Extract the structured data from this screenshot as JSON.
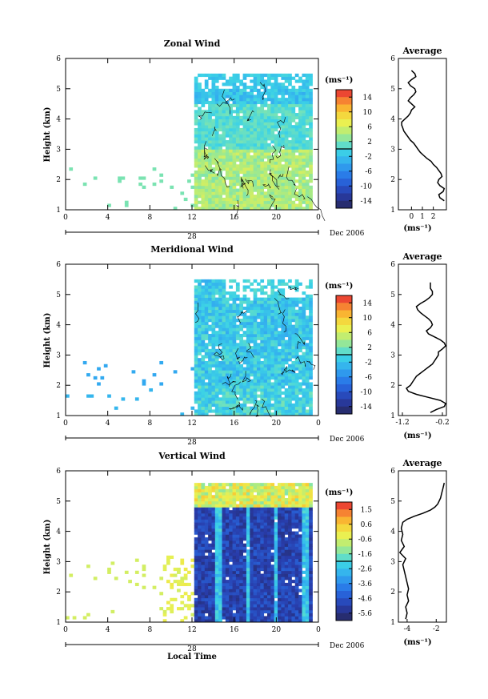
{
  "chart_data": [
    {
      "type": "heatmap",
      "title": "Zonal Wind",
      "xlabel": "",
      "ylabel": "Height (km)",
      "xlim": [
        0,
        24
      ],
      "ylim": [
        1,
        6
      ],
      "xticks": [
        "0",
        "4",
        "8",
        "12",
        "16",
        "20",
        "0"
      ],
      "yticks": [
        "1",
        "2",
        "3",
        "4",
        "5",
        "6"
      ],
      "date_day": "28",
      "date_label": "Dec 2006",
      "colorbar": {
        "unit": "(ms⁻¹)",
        "ticks": [
          "14",
          "10",
          "6",
          "2",
          "-2",
          "-6",
          "-10",
          "-14"
        ],
        "vmin": -16,
        "vmax": 16
      },
      "profile": {
        "title": "Average",
        "xlabel": "(ms⁻¹)",
        "xlim": [
          -1.2,
          3.2
        ],
        "xticks": [
          "0",
          "1",
          "2"
        ],
        "xtick_values": [
          0,
          1,
          2
        ],
        "height": [
          1.3,
          1.4,
          1.5,
          1.6,
          1.7,
          1.8,
          1.9,
          2.0,
          2.1,
          2.2,
          2.3,
          2.4,
          2.5,
          2.6,
          2.7,
          2.8,
          2.9,
          3.0,
          3.1,
          3.2,
          3.3,
          3.4,
          3.5,
          3.6,
          3.7,
          3.8,
          3.9,
          4.0,
          4.1,
          4.2,
          4.3,
          4.4,
          4.5,
          4.6,
          4.7,
          4.8,
          4.9,
          5.0,
          5.1,
          5.2,
          5.3,
          5.4,
          5.5,
          5.6
        ],
        "value": [
          3.0,
          2.6,
          2.5,
          2.9,
          3.0,
          2.6,
          2.4,
          2.5,
          2.8,
          2.7,
          2.5,
          2.3,
          2.0,
          1.8,
          1.4,
          1.1,
          0.8,
          0.6,
          0.4,
          0.2,
          -0.1,
          -0.3,
          -0.5,
          -0.7,
          -0.8,
          -0.9,
          -0.9,
          -0.6,
          -0.3,
          -0.1,
          0.0,
          0.3,
          0.0,
          -0.3,
          -0.1,
          0.2,
          0.4,
          0.3,
          -0.1,
          -0.3,
          0.0,
          0.4,
          0.3,
          0.0
        ]
      }
    },
    {
      "type": "heatmap",
      "title": "Meridional Wind",
      "xlabel": "",
      "ylabel": "Height (km)",
      "xlim": [
        0,
        24
      ],
      "ylim": [
        1,
        6
      ],
      "xticks": [
        "0",
        "4",
        "8",
        "12",
        "16",
        "20",
        "0"
      ],
      "yticks": [
        "1",
        "2",
        "3",
        "4",
        "5",
        "6"
      ],
      "date_day": "28",
      "date_label": "Dec 2006",
      "colorbar": {
        "unit": "(ms⁻¹)",
        "ticks": [
          "14",
          "10",
          "6",
          "2",
          "-2",
          "-6",
          "-10",
          "-14"
        ],
        "vmin": -16,
        "vmax": 16
      },
      "profile": {
        "title": "Average",
        "xlabel": "(ms⁻¹)",
        "xlim": [
          -1.3,
          -0.1
        ],
        "xticks": [
          "-1.2",
          "-0.2"
        ],
        "xtick_values": [
          -1.2,
          -0.2
        ],
        "height": [
          1.1,
          1.2,
          1.3,
          1.4,
          1.5,
          1.6,
          1.7,
          1.8,
          1.9,
          2.0,
          2.1,
          2.2,
          2.3,
          2.4,
          2.5,
          2.6,
          2.7,
          2.8,
          2.9,
          3.0,
          3.1,
          3.2,
          3.3,
          3.4,
          3.5,
          3.6,
          3.7,
          3.8,
          3.9,
          4.0,
          4.1,
          4.2,
          4.3,
          4.4,
          4.5,
          4.6,
          4.7,
          4.8,
          4.9,
          5.0,
          5.1,
          5.2,
          5.3,
          5.4
        ],
        "value": [
          -0.5,
          -0.35,
          -0.15,
          -0.12,
          -0.25,
          -0.55,
          -0.85,
          -1.05,
          -1.1,
          -1.0,
          -0.95,
          -0.9,
          -0.85,
          -0.75,
          -0.65,
          -0.55,
          -0.45,
          -0.4,
          -0.35,
          -0.3,
          -0.3,
          -0.2,
          -0.12,
          -0.15,
          -0.25,
          -0.4,
          -0.55,
          -0.6,
          -0.5,
          -0.45,
          -0.48,
          -0.55,
          -0.65,
          -0.75,
          -0.82,
          -0.85,
          -0.75,
          -0.62,
          -0.52,
          -0.45,
          -0.45,
          -0.5,
          -0.5,
          -0.5
        ]
      }
    },
    {
      "type": "heatmap",
      "title": "Vertical Wind",
      "xlabel": "Local Time",
      "ylabel": "Height (km)",
      "xlim": [
        0,
        24
      ],
      "ylim": [
        1,
        6
      ],
      "xticks": [
        "0",
        "4",
        "8",
        "12",
        "16",
        "20",
        "0"
      ],
      "yticks": [
        "1",
        "2",
        "3",
        "4",
        "5",
        "6"
      ],
      "date_day": "28",
      "date_label": "Dec 2006",
      "colorbar": {
        "unit": "(ms⁻¹)",
        "ticks": [
          "1.5",
          "0.6",
          "-0.6",
          "-1.6",
          "-2.6",
          "-3.6",
          "-4.6",
          "-5.6"
        ],
        "vmin": -6.1,
        "vmax": 2.0
      },
      "profile": {
        "title": "Average",
        "xlabel": "(ms⁻¹)",
        "xlim": [
          -4.6,
          -1.3
        ],
        "xticks": [
          "-4",
          "-2"
        ],
        "xtick_values": [
          -4,
          -2
        ],
        "height": [
          1.1,
          1.3,
          1.5,
          1.7,
          1.9,
          2.1,
          2.3,
          2.5,
          2.7,
          2.9,
          3.1,
          3.3,
          3.5,
          3.7,
          3.9,
          4.1,
          4.3,
          4.4,
          4.5,
          4.6,
          4.7,
          4.8,
          4.9,
          5.0,
          5.1,
          5.2,
          5.3,
          5.4,
          5.5,
          5.6
        ],
        "value": [
          -4.1,
          -4.0,
          -4.1,
          -3.9,
          -4.0,
          -3.9,
          -4.0,
          -4.1,
          -4.2,
          -4.3,
          -4.1,
          -4.5,
          -4.2,
          -4.4,
          -4.3,
          -4.4,
          -4.3,
          -4.0,
          -3.5,
          -2.9,
          -2.4,
          -2.1,
          -1.9,
          -1.8,
          -1.7,
          -1.65,
          -1.6,
          -1.55,
          -1.5,
          -1.45
        ]
      }
    }
  ]
}
